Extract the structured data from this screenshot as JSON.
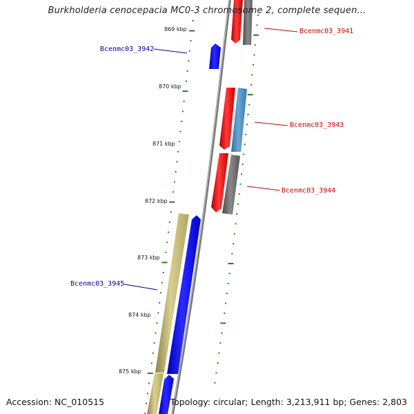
{
  "title": "Burkholderia cenocepacia MC0-3 chromosome 2, complete sequen...",
  "accession": "Accession: NC_010515",
  "topology": "Topology: circular; Length: 3,213,911 bp; Genes: 2,803",
  "ticks": [
    "869 kbp",
    "870 kbp",
    "871 kbp",
    "872 kbp",
    "873 kbp",
    "874 kbp",
    "875 kbp"
  ],
  "genes": [
    {
      "label": "Bcenmc03_3941",
      "color": "#cc0000"
    },
    {
      "label": "Bcenmc03_3942",
      "color": "#000099"
    },
    {
      "label": "Bcenmc03_3943",
      "color": "#cc0000"
    },
    {
      "label": "Bcenmc03_3944",
      "color": "#cc0000"
    },
    {
      "label": "Bcenmc03_3945",
      "color": "#000099"
    }
  ],
  "colors": {
    "forward_cds": "#ff0000",
    "reverse_cds": "#0000ff",
    "gray_feature": "#666666",
    "steelblue_feature": "#4682b4",
    "khaki_feature": "#c8bd7a",
    "tick_marks": "#2a7a1f",
    "backbone": "#888888"
  }
}
